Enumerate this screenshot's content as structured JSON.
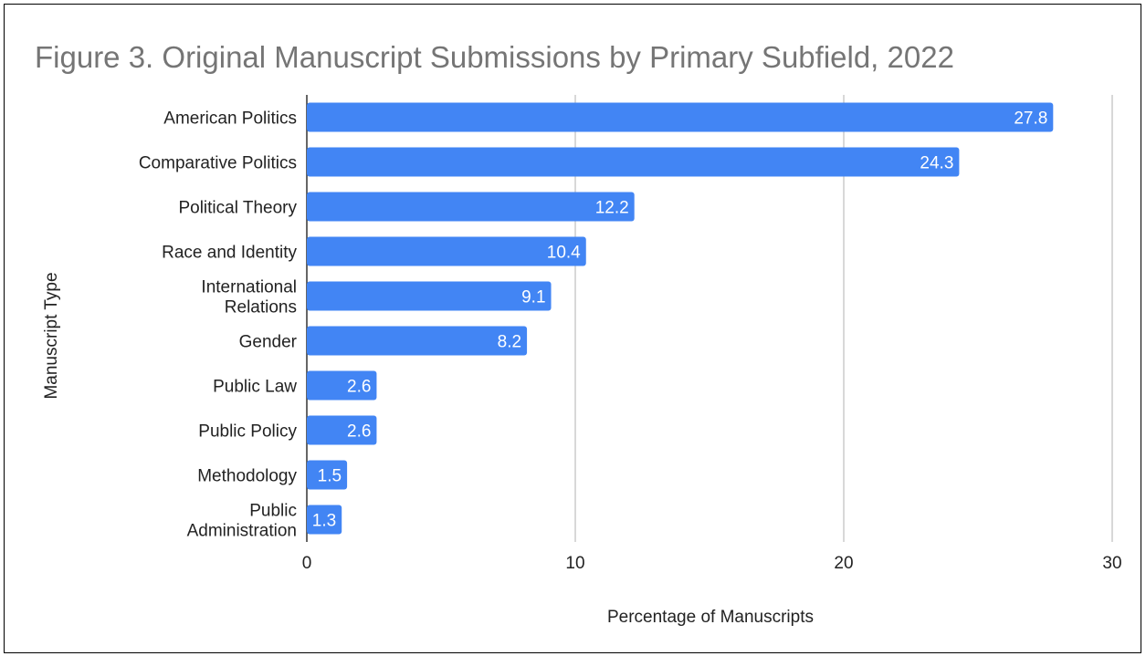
{
  "chart_data": {
    "type": "bar",
    "orientation": "horizontal",
    "title": "Figure 3. Original Manuscript Submissions by Primary Subfield, 2022",
    "xlabel": "Percentage of Manuscripts",
    "ylabel": "Manuscript Type",
    "categories": [
      "American Politics",
      "Comparative Politics",
      "Political Theory",
      "Race and Identity",
      "International Relations",
      "Gender",
      "Public Law",
      "Public Policy",
      "Methodology",
      "Public Administration"
    ],
    "values": [
      27.8,
      24.3,
      12.2,
      10.4,
      9.1,
      8.2,
      2.6,
      2.6,
      1.5,
      1.3
    ],
    "xlim": [
      0,
      30
    ],
    "xticks": [
      0,
      10,
      20,
      30
    ],
    "grid": true,
    "legend": "none",
    "colors": {
      "bar": "#4285f4",
      "title": "#757575",
      "grid": "#cccccc",
      "axis": "#333333",
      "label": "#222222",
      "data_label": "#ffffff"
    }
  }
}
